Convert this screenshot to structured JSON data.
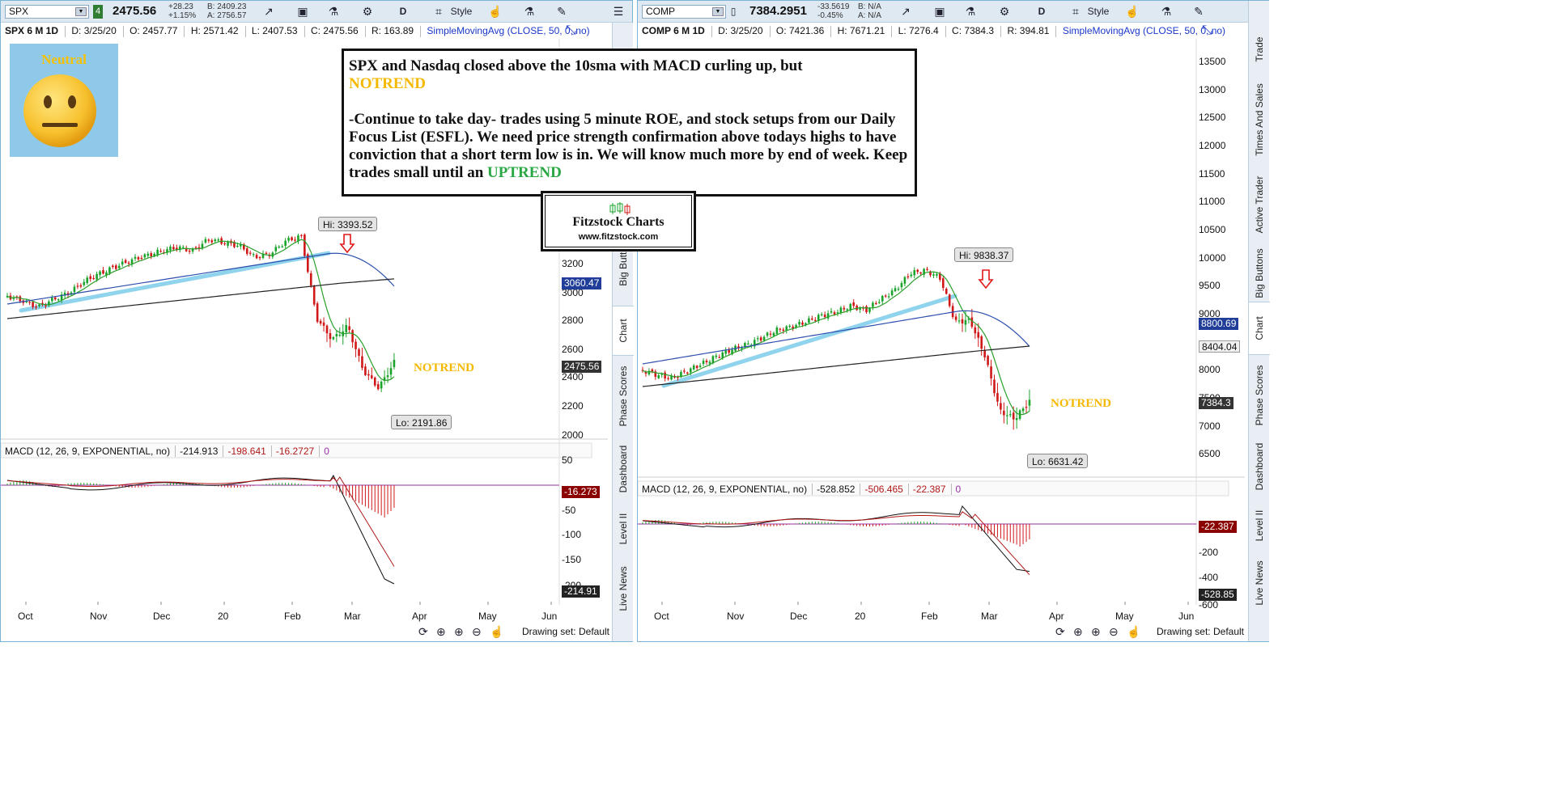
{
  "colors": {
    "up_candle": "#1aa32a",
    "down_candle": "#d01818",
    "sma_green": "#2aa02a",
    "sma_blue": "#2c4fae",
    "sma_black": "#222222",
    "trendline": "#8fd3ec",
    "macd_line": "#111111",
    "macd_signal": "#b01818",
    "zero_line": "#9b2fa8",
    "price_tag_blue": "#1f3d99",
    "price_tag_dark": "#333333",
    "macd_tag_red": "#8b0000"
  },
  "left": {
    "symbol": "SPX",
    "link_badge": "4",
    "last_price": "2475.56",
    "change_abs": "+28.23",
    "change_pct": "+1.15%",
    "bid": "B: 2409.23",
    "ask": "A: 2756.57",
    "timeframe_button": "D",
    "style_label": "Style",
    "info": {
      "title": "SPX 6 M 1D",
      "date": "D: 3/25/20",
      "open": "O: 2457.77",
      "high": "H: 2571.42",
      "low": "L: 2407.53",
      "close": "C: 2475.56",
      "range": "R: 163.89",
      "study": "SimpleMovingAvg (CLOSE, 50, 0, no)"
    },
    "macd_header": {
      "name": "MACD (12, 26, 9, EXPONENTIAL, no)",
      "value": "-214.913",
      "avg": "-198.641",
      "diff": "-16.2727",
      "zero": "0"
    },
    "y_axis_price": [
      "3200",
      "3000",
      "2800",
      "2600",
      "2400",
      "2200",
      "2000"
    ],
    "y_axis_macd": [
      "50",
      "-50",
      "-100",
      "-150",
      "-200"
    ],
    "price_tags": {
      "sma50": "3060.47",
      "last": "2475.56"
    },
    "macd_tags": {
      "diff": "-16.273",
      "value": "-214.91"
    },
    "hi_callout": "Hi: 3393.52",
    "lo_callout": "Lo: 2191.86",
    "notrend_tag": "NOTREND",
    "months": [
      "Oct",
      "Nov",
      "Dec",
      "20",
      "Feb",
      "Mar",
      "Apr",
      "May",
      "Jun"
    ],
    "drawing_set": "Drawing set: Default",
    "side_tabs": [
      "Big Buttons",
      "Chart",
      "Phase Scores",
      "Dashboard",
      "Level II",
      "Live News"
    ]
  },
  "right": {
    "symbol": "COMP",
    "last_price": "7384.2951",
    "change_abs": "-33.5619",
    "change_pct": "-0.45%",
    "bid": "B: N/A",
    "ask": "A: N/A",
    "timeframe_button": "D",
    "style_label": "Style",
    "info": {
      "title": "COMP 6 M 1D",
      "date": "D: 3/25/20",
      "open": "O: 7421.36",
      "high": "H: 7671.21",
      "low": "L: 7276.4",
      "close": "C: 7384.3",
      "range": "R: 394.81",
      "study": "SimpleMovingAvg (CLOSE, 50, 0, no)"
    },
    "macd_header": {
      "name": "MACD (12, 26, 9, EXPONENTIAL, no)",
      "value": "-528.852",
      "avg": "-506.465",
      "diff": "-22.387",
      "zero": "0"
    },
    "y_axis_price": [
      "13500",
      "13000",
      "12500",
      "12000",
      "11500",
      "11000",
      "10500",
      "10000",
      "9500",
      "9000",
      "8000",
      "7500",
      "7000",
      "6500"
    ],
    "y_axis_macd": [
      "-200",
      "-400",
      "-600"
    ],
    "price_tags": {
      "sma50": "8800.69",
      "sma200": "8404.04",
      "last": "7384.3"
    },
    "macd_tags": {
      "diff": "-22.387",
      "value": "-528.85"
    },
    "hi_callout": "Hi: 9838.37",
    "lo_callout": "Lo: 6631.42",
    "notrend_tag": "NOTREND",
    "months": [
      "Oct",
      "Nov",
      "Dec",
      "20",
      "Feb",
      "Mar",
      "Apr",
      "May",
      "Jun"
    ],
    "drawing_set": "Drawing set: Default",
    "side_tabs": [
      "Trade",
      "Times And Sales",
      "Active Trader",
      "Big Buttons",
      "Chart",
      "Phase Scores",
      "Dashboard",
      "Level II",
      "Live News"
    ]
  },
  "overlay": {
    "mood_label": "Neutral",
    "note_line1": "SPX and Nasdaq closed above the 10sma with MACD curling up, but",
    "note_notrend": "NOTREND",
    "note_line2": "-Continue to take day- trades using 5 minute ROE, and stock setups from our Daily Focus List (ESFL).   We need price strength confirmation above todays highs to have conviction that a short term low is in.   We will know much more by end of week.  Keep trades small until an",
    "note_uptrend": "UPTREND",
    "logo_title": "Fitzstock Charts",
    "logo_url": "www.fitzstock.com"
  }
}
